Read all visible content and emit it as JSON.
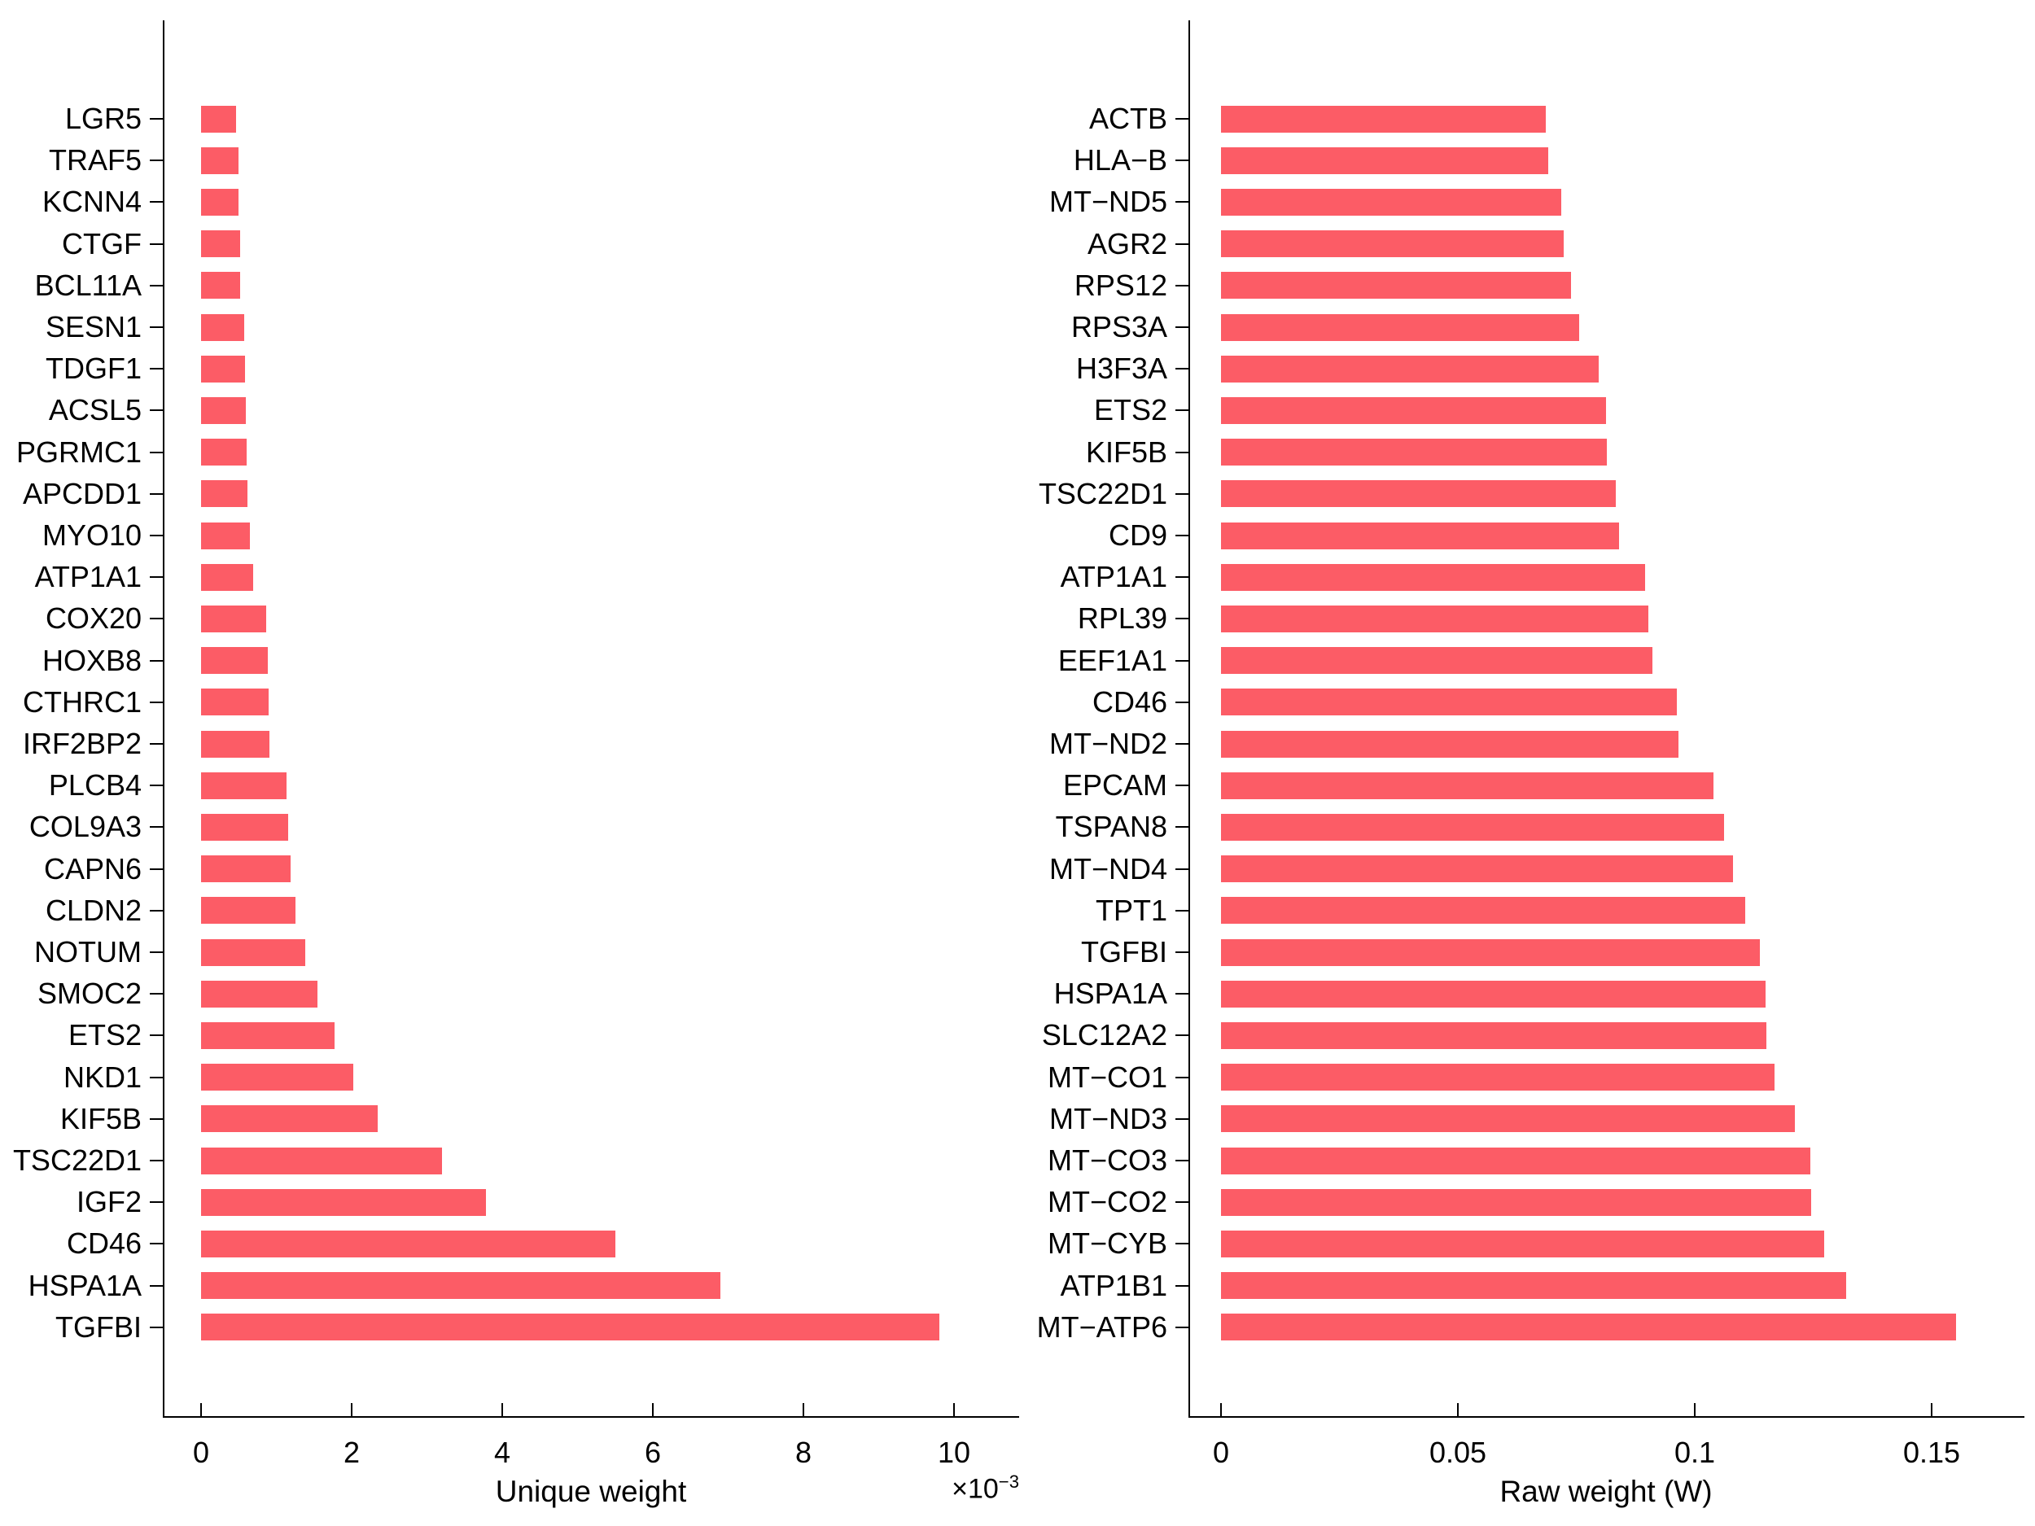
{
  "page": {
    "background": "#ffffff"
  },
  "chart_data": [
    {
      "type": "bar",
      "orientation": "horizontal",
      "title": "",
      "xlabel": "Unique weight",
      "x_multiplier_base": "×10",
      "x_multiplier_exponent": "−3",
      "value_units": "×10⁻³ (values below are in thousandths)",
      "bar_color": "#fc5c66",
      "grid": false,
      "legend": "none",
      "xlim": [
        0,
        10.8
      ],
      "xticks": [
        0,
        2,
        4,
        6,
        8,
        10
      ],
      "xtick_labels": [
        "0",
        "2",
        "4",
        "6",
        "8",
        "10"
      ],
      "categories": [
        "LGR5",
        "TRAF5",
        "KCNN4",
        "CTGF",
        "BCL11A",
        "SESN1",
        "TDGF1",
        "ACSL5",
        "PGRMC1",
        "APCDD1",
        "MYO10",
        "ATP1A1",
        "COX20",
        "HOXB8",
        "CTHRC1",
        "IRF2BP2",
        "PLCB4",
        "COL9A3",
        "CAPN6",
        "CLDN2",
        "NOTUM",
        "SMOC2",
        "ETS2",
        "NKD1",
        "KIF5B",
        "TSC22D1",
        "IGF2",
        "CD46",
        "HSPA1A",
        "TGFBI"
      ],
      "values": [
        0.46,
        0.5,
        0.5,
        0.52,
        0.52,
        0.57,
        0.58,
        0.59,
        0.61,
        0.62,
        0.65,
        0.69,
        0.87,
        0.89,
        0.9,
        0.91,
        1.14,
        1.16,
        1.19,
        1.25,
        1.38,
        1.55,
        1.77,
        2.02,
        2.35,
        3.2,
        3.78,
        5.5,
        6.9,
        9.8
      ]
    },
    {
      "type": "bar",
      "orientation": "horizontal",
      "title": "",
      "xlabel": "Raw weight (W)",
      "bar_color": "#fc5c66",
      "grid": false,
      "legend": "none",
      "xlim": [
        0,
        0.17
      ],
      "xticks": [
        0,
        0.05,
        0.1,
        0.15
      ],
      "xtick_labels": [
        "0",
        "0.05",
        "0.1",
        "0.15"
      ],
      "categories": [
        "ACTB",
        "HLA−B",
        "MT−ND5",
        "AGR2",
        "RPS12",
        "RPS3A",
        "H3F3A",
        "ETS2",
        "KIF5B",
        "TSC22D1",
        "CD9",
        "ATP1A1",
        "RPL39",
        "EEF1A1",
        "CD46",
        "MT−ND2",
        "EPCAM",
        "TSPAN8",
        "MT−ND4",
        "TPT1",
        "TGFBI",
        "HSPA1A",
        "SLC12A2",
        "MT−CO1",
        "MT−ND3",
        "MT−CO3",
        "MT−CO2",
        "MT−CYB",
        "ATP1B1",
        "MT−ATP6"
      ],
      "values": [
        0.0686,
        0.069,
        0.0719,
        0.0724,
        0.0738,
        0.0756,
        0.0798,
        0.0812,
        0.0814,
        0.0833,
        0.084,
        0.0895,
        0.0902,
        0.0911,
        0.0963,
        0.0966,
        0.1039,
        0.1062,
        0.108,
        0.1107,
        0.1137,
        0.115,
        0.1152,
        0.1168,
        0.1212,
        0.1244,
        0.1246,
        0.1274,
        0.132,
        0.1551
      ]
    }
  ]
}
